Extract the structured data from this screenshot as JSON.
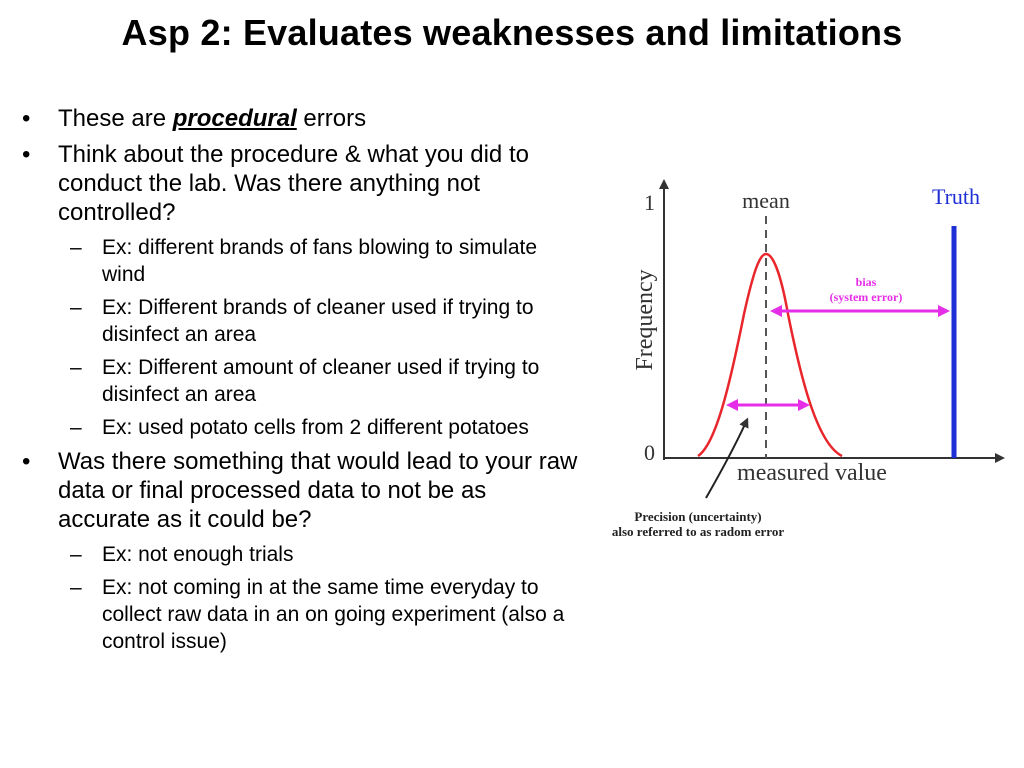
{
  "slide": {
    "title": "Asp 2: Evaluates weaknesses and limitations"
  },
  "bullets": [
    {
      "pre": "These are ",
      "emph": "procedural",
      "post": " errors"
    },
    {
      "text": "Think about the procedure & what you did to conduct the lab. Was there anything not controlled?"
    },
    {
      "text": "Was there something that would lead to your raw data or final processed data to not be as accurate as it could be?"
    }
  ],
  "sub_bullets_1": [
    "Ex: different brands of fans blowing to simulate wind",
    "Ex: Different brands of cleaner used if trying to disinfect an area",
    "Ex: Different amount of cleaner used if trying to disinfect an area",
    "Ex: used potato cells from 2 different potatoes"
  ],
  "sub_bullets_2": [
    "Ex: not enough trials",
    "Ex: not coming in at the same time everyday to collect raw data in an on going experiment (also a control issue)"
  ],
  "diagram": {
    "y_tick_top": "1",
    "y_tick_bottom": "0",
    "y_label": "Frequency",
    "x_label": "measured value",
    "mean_label": "mean",
    "truth_label": "Truth",
    "bias_line1": "bias",
    "bias_line2": "(system error)",
    "precision_line1": "Precision (uncertainty)",
    "precision_line2": "also referred to as radom error",
    "colors": {
      "curve": "#e8262b",
      "truth": "#1f2fd6",
      "arrows": "#e62ee8"
    }
  }
}
